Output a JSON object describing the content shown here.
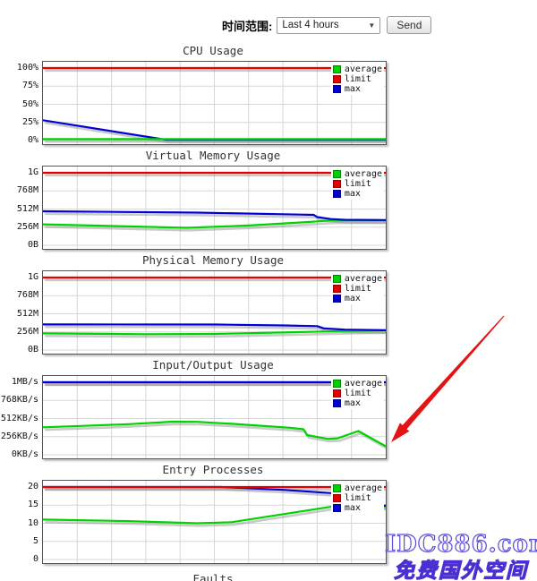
{
  "header": {
    "label": "时间范围:",
    "select_value": "Last 4 hours",
    "select_arrow": "▼",
    "send_label": "Send"
  },
  "legend": {
    "items": [
      {
        "label": "average",
        "color": "#00d200"
      },
      {
        "label": "limit",
        "color": "#e40000"
      },
      {
        "label": "max",
        "color": "#0000d2"
      }
    ]
  },
  "chart_data": [
    {
      "type": "line",
      "title": "CPU Usage",
      "ylabels": [
        "100%",
        "75%",
        "50%",
        "25%",
        "0%"
      ],
      "ymax": 100,
      "series": [
        {
          "name": "limit",
          "points": [
            [
              0,
              100
            ],
            [
              1,
              100
            ]
          ]
        },
        {
          "name": "max",
          "points": [
            [
              0,
              28
            ],
            [
              0.36,
              1
            ],
            [
              1,
              1
            ]
          ]
        },
        {
          "name": "average",
          "points": [
            [
              0,
              2
            ],
            [
              1,
              2
            ]
          ]
        }
      ]
    },
    {
      "type": "line",
      "title": "Virtual Memory Usage",
      "ylabels": [
        "1G",
        "768M",
        "512M",
        "256M",
        "0B"
      ],
      "ymax": 1024,
      "series": [
        {
          "name": "average",
          "points": [
            [
              0,
              296
            ],
            [
              0.22,
              270
            ],
            [
              0.42,
              246
            ],
            [
              0.6,
              280
            ],
            [
              0.78,
              330
            ],
            [
              0.8,
              338
            ],
            [
              0.84,
              350
            ],
            [
              1,
              350
            ]
          ]
        },
        {
          "name": "limit",
          "points": [
            [
              0,
              1024
            ],
            [
              1,
              1024
            ]
          ]
        },
        {
          "name": "max",
          "points": [
            [
              0,
              481
            ],
            [
              0.45,
              462
            ],
            [
              0.75,
              434
            ],
            [
              0.79,
              430
            ],
            [
              0.8,
              398
            ],
            [
              0.84,
              370
            ],
            [
              0.88,
              360
            ],
            [
              1,
              356
            ]
          ]
        }
      ]
    },
    {
      "type": "line",
      "title": "Physical Memory Usage",
      "ylabels": [
        "1G",
        "768M",
        "512M",
        "256M",
        "0B"
      ],
      "ymax": 1024,
      "series": [
        {
          "name": "average",
          "points": [
            [
              0,
              235
            ],
            [
              0.3,
              224
            ],
            [
              0.5,
              228
            ],
            [
              0.7,
              248
            ],
            [
              0.82,
              262
            ],
            [
              0.9,
              272
            ],
            [
              1,
              278
            ]
          ]
        },
        {
          "name": "limit",
          "points": [
            [
              0,
              1024
            ],
            [
              1,
              1024
            ]
          ]
        },
        {
          "name": "max",
          "points": [
            [
              0,
              362
            ],
            [
              0.5,
              360
            ],
            [
              0.7,
              348
            ],
            [
              0.8,
              338
            ],
            [
              0.82,
              305
            ],
            [
              0.88,
              288
            ],
            [
              1,
              280
            ]
          ]
        }
      ]
    },
    {
      "type": "line",
      "title": "Input/Output Usage",
      "ylabels": [
        "1MB/s",
        "768KB/s",
        "512KB/s",
        "256KB/s",
        "0KB/s"
      ],
      "ymax": 1024,
      "series": [
        {
          "name": "average",
          "points": [
            [
              0,
              388
            ],
            [
              0.12,
              408
            ],
            [
              0.25,
              432
            ],
            [
              0.38,
              468
            ],
            [
              0.45,
              465
            ],
            [
              0.55,
              438
            ],
            [
              0.65,
              405
            ],
            [
              0.72,
              382
            ],
            [
              0.76,
              360
            ],
            [
              0.77,
              278
            ],
            [
              0.83,
              225
            ],
            [
              0.86,
              232
            ],
            [
              0.92,
              335
            ],
            [
              1,
              120
            ]
          ]
        },
        {
          "name": "limit",
          "points": [
            [
              0,
              1024
            ],
            [
              1,
              1024
            ]
          ]
        },
        {
          "name": "max",
          "points": [
            [
              0,
              1024
            ],
            [
              1,
              1024
            ]
          ]
        }
      ]
    },
    {
      "type": "line",
      "title": "Entry Processes",
      "ylabels": [
        "20",
        "15",
        "10",
        "5",
        "0"
      ],
      "ymax": 20,
      "series": [
        {
          "name": "average",
          "points": [
            [
              0,
              11
            ],
            [
              0.25,
              10.6
            ],
            [
              0.45,
              10
            ],
            [
              0.55,
              10.3
            ],
            [
              0.87,
              15
            ],
            [
              0.95,
              15
            ],
            [
              1,
              14.6
            ]
          ]
        },
        {
          "name": "max",
          "points": [
            [
              0,
              20
            ],
            [
              0.52,
              20
            ],
            [
              0.7,
              19.2
            ],
            [
              0.86,
              18.2
            ],
            [
              0.87,
              16.8
            ],
            [
              0.93,
              15.3
            ],
            [
              0.97,
              15
            ],
            [
              0.98,
              14.3
            ],
            [
              1,
              15
            ]
          ]
        },
        {
          "name": "limit",
          "points": [
            [
              0,
              20
            ],
            [
              1,
              20
            ]
          ]
        }
      ]
    },
    {
      "type": "line",
      "title": "Faults",
      "ylabels": [],
      "ymax": 1,
      "series": []
    }
  ],
  "annotation": {
    "arrow_color": "#e31414"
  },
  "watermark": {
    "line1": "IDC886.com",
    "line2": "免费国外空间",
    "color": "#5b4fd6"
  }
}
